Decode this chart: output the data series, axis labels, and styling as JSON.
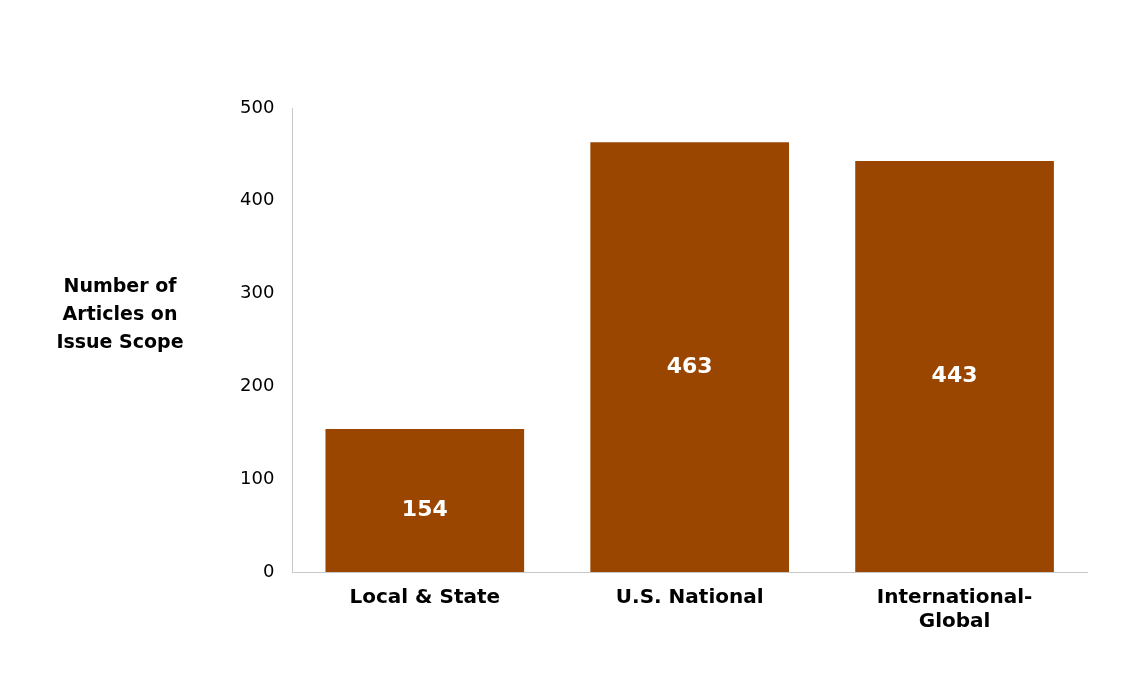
{
  "chart_data": {
    "type": "bar",
    "ylabel": "Number of Articles on Issue Scope",
    "categories": [
      "Local & State",
      "U.S. National",
      "International-Global"
    ],
    "values": [
      154,
      463,
      443
    ],
    "color": "#9a4500",
    "ylim": [
      0,
      500
    ],
    "yticks": [
      0,
      100,
      200,
      300,
      400,
      500
    ],
    "grid": false,
    "legend": false,
    "data_labels": true
  }
}
